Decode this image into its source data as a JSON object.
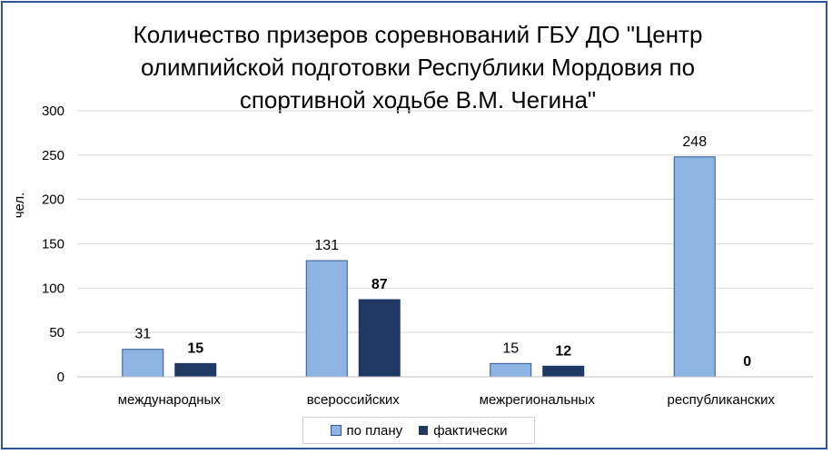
{
  "chart_data": {
    "type": "bar",
    "title": "Количество призеров соревнований ГБУ ДО \"Центр олимпийской подготовки Республики Мордовия по спортивной ходьбе В.М. Чегина\"",
    "title_lines": [
      "Количество призеров соревнований ГБУ ДО \"Центр",
      "олимпийской подготовки Республики Мордовия по",
      "спортивной ходьбе В.М. Чегина\""
    ],
    "ylabel": "чел.",
    "xlabel": "",
    "categories": [
      "международных",
      "всероссийских",
      "межрегиональных",
      "республиканских"
    ],
    "ylim": [
      0,
      300
    ],
    "yticks": [
      0,
      50,
      100,
      150,
      200,
      250,
      300
    ],
    "grid": true,
    "legend_position": "bottom",
    "series": [
      {
        "name": "по плану",
        "values": [
          31,
          131,
          15,
          248
        ],
        "color": "#8eb4e3",
        "label_bold": false
      },
      {
        "name": "фактически",
        "values": [
          15,
          87,
          12,
          0
        ],
        "color": "#1f3864",
        "label_bold": true
      }
    ]
  }
}
